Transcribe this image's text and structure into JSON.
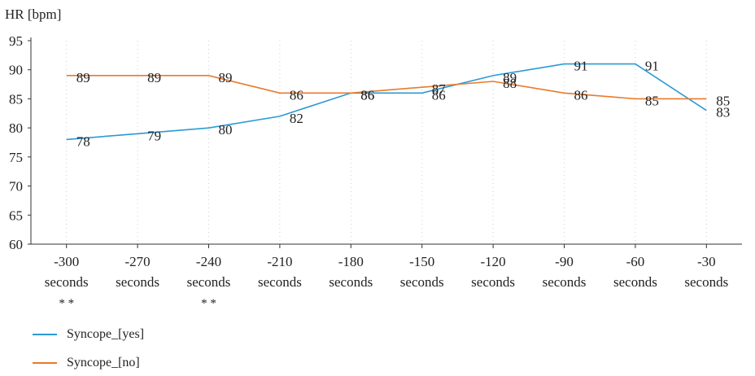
{
  "chart_data": {
    "type": "line",
    "ylabel": "HR [bpm]",
    "xlabel": "",
    "categories": [
      [
        "-300",
        "seconds"
      ],
      [
        "-270",
        "seconds"
      ],
      [
        "-240",
        "seconds"
      ],
      [
        "-210",
        "seconds"
      ],
      [
        "-180",
        "seconds"
      ],
      [
        "-150",
        "seconds"
      ],
      [
        "-120",
        "seconds"
      ],
      [
        "-90",
        "seconds"
      ],
      [
        "-60",
        "seconds"
      ],
      [
        "-30",
        "seconds"
      ]
    ],
    "markers": [
      "* *",
      "",
      "* *",
      "",
      "",
      "",
      "",
      "",
      "",
      ""
    ],
    "yticks": [
      60,
      65,
      70,
      75,
      80,
      85,
      90,
      95
    ],
    "ylim": [
      60,
      95
    ],
    "grid": "vertical dotted",
    "legend_position": "bottom-left",
    "series": [
      {
        "name": "Syncope_[yes]",
        "color": "#2a9ad4",
        "values": [
          78,
          79,
          80,
          82,
          86,
          86,
          89,
          91,
          91,
          83
        ]
      },
      {
        "name": "Syncope_[no]",
        "color": "#e87a2c",
        "values": [
          89,
          89,
          89,
          86,
          86,
          87,
          88,
          86,
          85,
          85
        ]
      }
    ]
  }
}
